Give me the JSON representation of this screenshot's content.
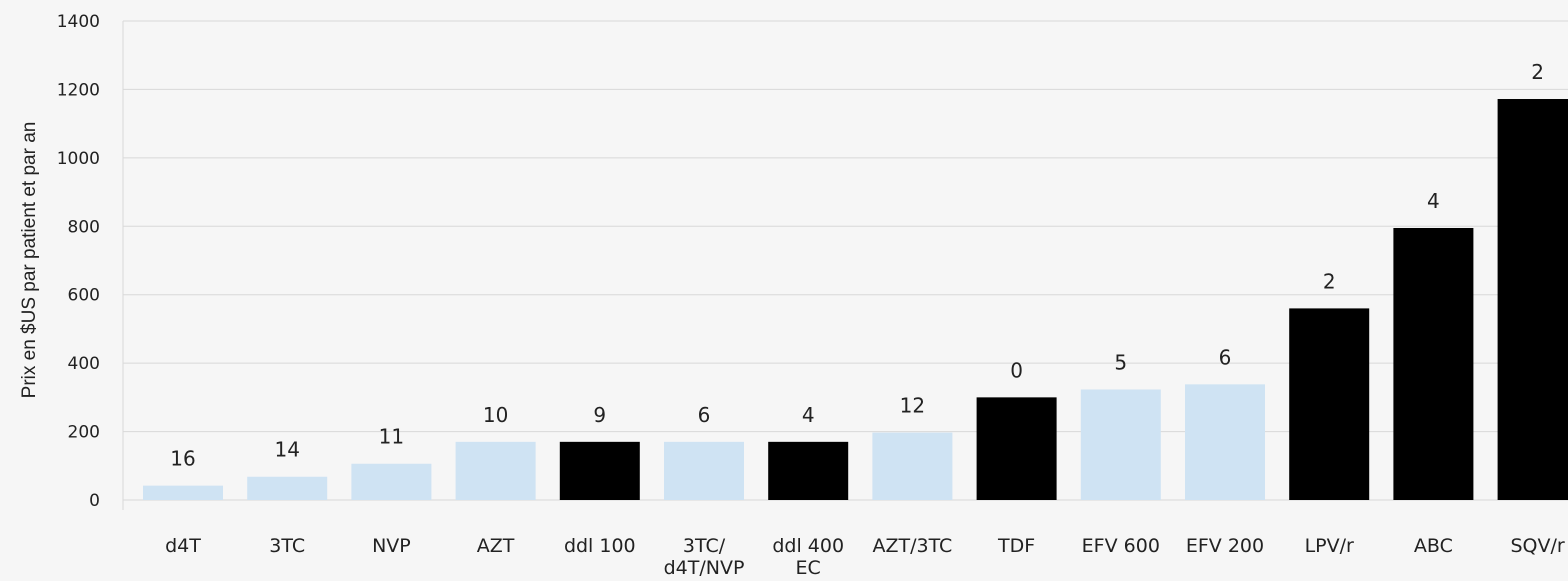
{
  "chart_data": {
    "type": "bar",
    "ylabel": "Prix en $US par patient et par an",
    "xlabel": "",
    "ylim": [
      0,
      1400
    ],
    "yticks": [
      0,
      200,
      400,
      600,
      800,
      1000,
      1200,
      1400
    ],
    "yticks_labels": [
      "0",
      "200",
      "400",
      "600",
      "800",
      "1000",
      "1200",
      "1400"
    ],
    "grid": true,
    "categories": [
      [
        "d4T"
      ],
      [
        "3TC"
      ],
      [
        "NVP"
      ],
      [
        "AZT"
      ],
      [
        "ddl 100"
      ],
      [
        "3TC/",
        "d4T/NVP"
      ],
      [
        "ddl 400",
        "EC"
      ],
      [
        "AZT/3TC"
      ],
      [
        "TDF"
      ],
      [
        "EFV 600"
      ],
      [
        "EFV 200"
      ],
      [
        "LPV/r"
      ],
      [
        "ABC"
      ],
      [
        "SQV/r"
      ]
    ],
    "values": [
      42,
      68,
      106,
      170,
      170,
      170,
      170,
      197,
      300,
      323,
      338,
      560,
      795,
      1172
    ],
    "data_labels": [
      "16",
      "14",
      "11",
      "10",
      "9",
      "6",
      "4",
      "12",
      "0",
      "5",
      "6",
      "2",
      "4",
      "2"
    ],
    "bar_colors": [
      "#cfe3f3",
      "#cfe3f3",
      "#cfe3f3",
      "#cfe3f3",
      "#000000",
      "#cfe3f3",
      "#000000",
      "#cfe3f3",
      "#000000",
      "#cfe3f3",
      "#cfe3f3",
      "#000000",
      "#000000",
      "#000000"
    ],
    "grid_color": "#d8d8d8"
  }
}
